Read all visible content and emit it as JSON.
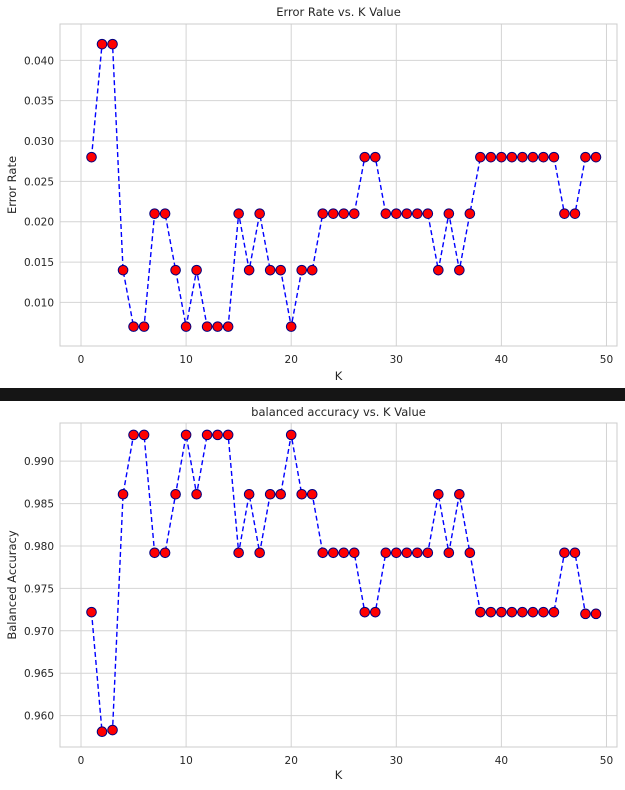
{
  "chart_data": [
    {
      "type": "line",
      "title": "Error Rate vs. K Value",
      "xlabel": "K",
      "ylabel": "Error Rate",
      "xlim": [
        -2,
        51
      ],
      "ylim": [
        0.0046,
        0.0445
      ],
      "xticks": [
        0,
        10,
        20,
        30,
        40,
        50
      ],
      "yticks": [
        0.01,
        0.015,
        0.02,
        0.025,
        0.03,
        0.035,
        0.04
      ],
      "ytick_labels": [
        "0.010",
        "0.015",
        "0.020",
        "0.025",
        "0.030",
        "0.035",
        "0.040"
      ],
      "grid": true,
      "line_color": "#0000ff",
      "line_style": "dashed",
      "marker_color": "#ff0000",
      "marker_edge_color": "#000080",
      "x": [
        1,
        2,
        3,
        4,
        5,
        6,
        7,
        8,
        9,
        10,
        11,
        12,
        13,
        14,
        15,
        16,
        17,
        18,
        19,
        20,
        21,
        22,
        23,
        24,
        25,
        26,
        27,
        28,
        29,
        30,
        31,
        32,
        33,
        34,
        35,
        36,
        37,
        38,
        39,
        40,
        41,
        42,
        43,
        44,
        45,
        46,
        47,
        48,
        49
      ],
      "series": [
        {
          "values": [
            0.028,
            0.042,
            0.042,
            0.014,
            0.007,
            0.007,
            0.021,
            0.021,
            0.014,
            0.007,
            0.014,
            0.007,
            0.007,
            0.007,
            0.021,
            0.014,
            0.021,
            0.014,
            0.014,
            0.007,
            0.014,
            0.014,
            0.021,
            0.021,
            0.021,
            0.021,
            0.028,
            0.028,
            0.021,
            0.021,
            0.021,
            0.021,
            0.021,
            0.014,
            0.021,
            0.014,
            0.021,
            0.028,
            0.028,
            0.028,
            0.028,
            0.028,
            0.028,
            0.028,
            0.028,
            0.021,
            0.021,
            0.028,
            0.028
          ]
        }
      ]
    },
    {
      "type": "line",
      "title": "balanced accuracy vs. K Value",
      "xlabel": "K",
      "ylabel": "Balanced Accuracy",
      "xlim": [
        -2,
        51
      ],
      "ylim": [
        0.9563,
        0.9945
      ],
      "xticks": [
        0,
        10,
        20,
        30,
        40,
        50
      ],
      "yticks": [
        0.96,
        0.965,
        0.97,
        0.975,
        0.98,
        0.985,
        0.99
      ],
      "ytick_labels": [
        "0.960",
        "0.965",
        "0.970",
        "0.975",
        "0.980",
        "0.985",
        "0.990"
      ],
      "grid": true,
      "line_color": "#0000ff",
      "line_style": "dashed",
      "marker_color": "#ff0000",
      "marker_edge_color": "#000080",
      "x": [
        1,
        2,
        3,
        4,
        5,
        6,
        7,
        8,
        9,
        10,
        11,
        12,
        13,
        14,
        15,
        16,
        17,
        18,
        19,
        20,
        21,
        22,
        23,
        24,
        25,
        26,
        27,
        28,
        29,
        30,
        31,
        32,
        33,
        34,
        35,
        36,
        37,
        38,
        39,
        40,
        41,
        42,
        43,
        44,
        45,
        46,
        47,
        48,
        49
      ],
      "series": [
        {
          "values": [
            0.9722,
            0.9581,
            0.9583,
            0.9861,
            0.9931,
            0.9931,
            0.9792,
            0.9792,
            0.9861,
            0.9931,
            0.9861,
            0.9931,
            0.9931,
            0.9931,
            0.9792,
            0.9861,
            0.9792,
            0.9861,
            0.9861,
            0.9931,
            0.9861,
            0.9861,
            0.9792,
            0.9792,
            0.9792,
            0.9792,
            0.9722,
            0.9722,
            0.9792,
            0.9792,
            0.9792,
            0.9792,
            0.9792,
            0.9861,
            0.9792,
            0.9861,
            0.9792,
            0.9722,
            0.9722,
            0.9722,
            0.9722,
            0.9722,
            0.9722,
            0.9722,
            0.9722,
            0.9792,
            0.9792,
            0.972,
            0.972
          ]
        }
      ]
    }
  ]
}
